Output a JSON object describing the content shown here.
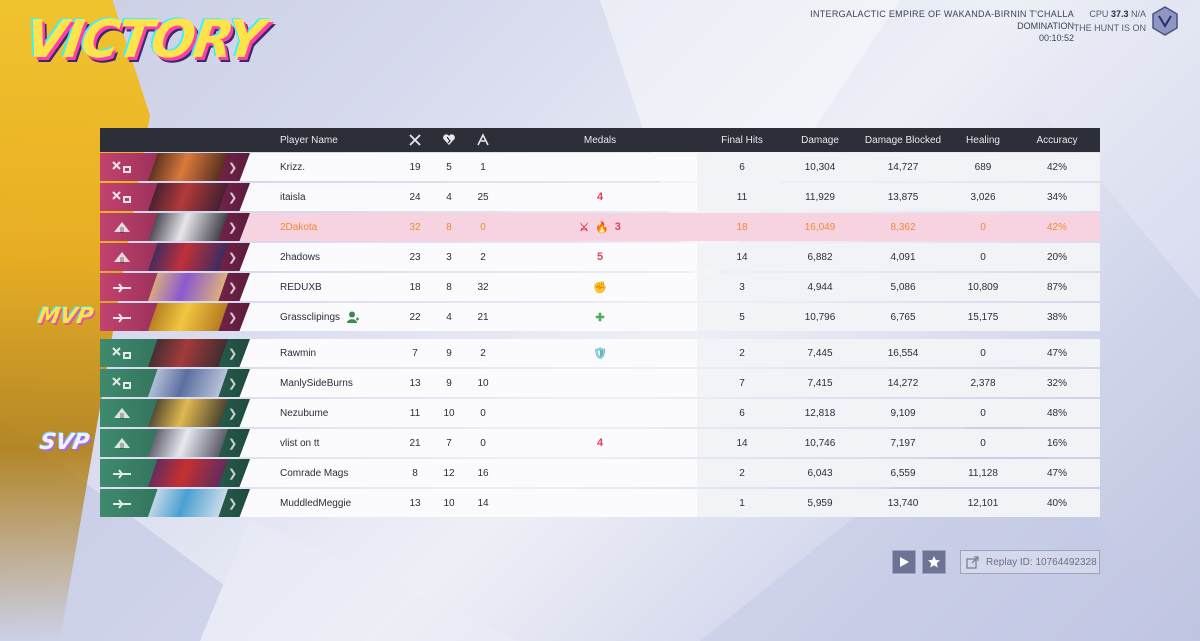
{
  "result": "VICTORY",
  "match": {
    "map": "INTERGALACTIC EMPIRE OF WAKANDA-BIRNIN T'CHALLA",
    "mode": "DOMINATION",
    "time": "00:10:52",
    "mission": "THE HUNT IS ON",
    "hud_cpu": "CPU",
    "hud_ping": "37.3",
    "hud_na": "N/A"
  },
  "headers": {
    "player_name": "Player Name",
    "medals": "Medals",
    "final_hits": "Final Hits",
    "damage": "Damage",
    "damage_blocked": "Damage Blocked",
    "healing": "Healing",
    "accuracy": "Accuracy"
  },
  "tags": {
    "mvp": "MVP",
    "svp": "SVP"
  },
  "team_colors": {
    "ally": "#b63a66",
    "enemy": "#2f7a60",
    "highlight_text": "#f08a32"
  },
  "team1": [
    {
      "name": "Krizz.",
      "k": "19",
      "d": "5",
      "a": "1",
      "medals": [],
      "fh": "6",
      "dmg": "10,304",
      "blk": "14,727",
      "heal": "689",
      "acc": "42%",
      "role": "vanguard-icon"
    },
    {
      "name": "itaisla",
      "k": "24",
      "d": "4",
      "a": "25",
      "medals": [
        "4"
      ],
      "fh": "11",
      "dmg": "11,929",
      "blk": "13,875",
      "heal": "3,026",
      "acc": "34%",
      "role": "vanguard-icon"
    },
    {
      "name": "2Dakota",
      "k": "32",
      "d": "8",
      "a": "0",
      "medals": [
        "⚔",
        "🔥",
        "3"
      ],
      "fh": "18",
      "dmg": "16,049",
      "blk": "8,362",
      "heal": "0",
      "acc": "42%",
      "role": "duelist-icon",
      "highlight": true
    },
    {
      "name": "2hadows",
      "k": "23",
      "d": "3",
      "a": "2",
      "medals": [
        "5"
      ],
      "fh": "14",
      "dmg": "6,882",
      "blk": "4,091",
      "heal": "0",
      "acc": "20%",
      "role": "duelist-icon"
    },
    {
      "name": "REDUXB",
      "k": "18",
      "d": "8",
      "a": "32",
      "medals": [
        "✊"
      ],
      "fh": "3",
      "dmg": "4,944",
      "blk": "5,086",
      "heal": "10,809",
      "acc": "87%",
      "role": "strategist-icon"
    },
    {
      "name": "Grassclipings",
      "k": "22",
      "d": "4",
      "a": "21",
      "medals": [
        "✚"
      ],
      "fh": "5",
      "dmg": "10,796",
      "blk": "6,765",
      "heal": "15,175",
      "acc": "38%",
      "role": "strategist-icon",
      "friend": true
    }
  ],
  "team2": [
    {
      "name": "Rawmin",
      "k": "7",
      "d": "9",
      "a": "2",
      "medals": [
        "🛡"
      ],
      "fh": "2",
      "dmg": "7,445",
      "blk": "16,554",
      "heal": "0",
      "acc": "47%",
      "role": "vanguard-icon"
    },
    {
      "name": "ManlySideBurns",
      "k": "13",
      "d": "9",
      "a": "10",
      "medals": [],
      "fh": "7",
      "dmg": "7,415",
      "blk": "14,272",
      "heal": "2,378",
      "acc": "32%",
      "role": "vanguard-icon"
    },
    {
      "name": "Nezubume",
      "k": "11",
      "d": "10",
      "a": "0",
      "medals": [],
      "fh": "6",
      "dmg": "12,818",
      "blk": "9,109",
      "heal": "0",
      "acc": "48%",
      "role": "duelist-icon"
    },
    {
      "name": "vlist on tt",
      "k": "21",
      "d": "7",
      "a": "0",
      "medals": [
        "4"
      ],
      "fh": "14",
      "dmg": "10,746",
      "blk": "7,197",
      "heal": "0",
      "acc": "16%",
      "role": "duelist-icon"
    },
    {
      "name": "Comrade Mags",
      "k": "8",
      "d": "12",
      "a": "16",
      "medals": [],
      "fh": "2",
      "dmg": "6,043",
      "blk": "6,559",
      "heal": "11,128",
      "acc": "47%",
      "role": "strategist-icon"
    },
    {
      "name": "MuddledMeggie",
      "k": "13",
      "d": "10",
      "a": "14",
      "medals": [],
      "fh": "1",
      "dmg": "5,959",
      "blk": "13,740",
      "heal": "12,101",
      "acc": "40%",
      "role": "strategist-icon"
    }
  ],
  "replay": {
    "label": "Replay ID: 10764492328"
  }
}
